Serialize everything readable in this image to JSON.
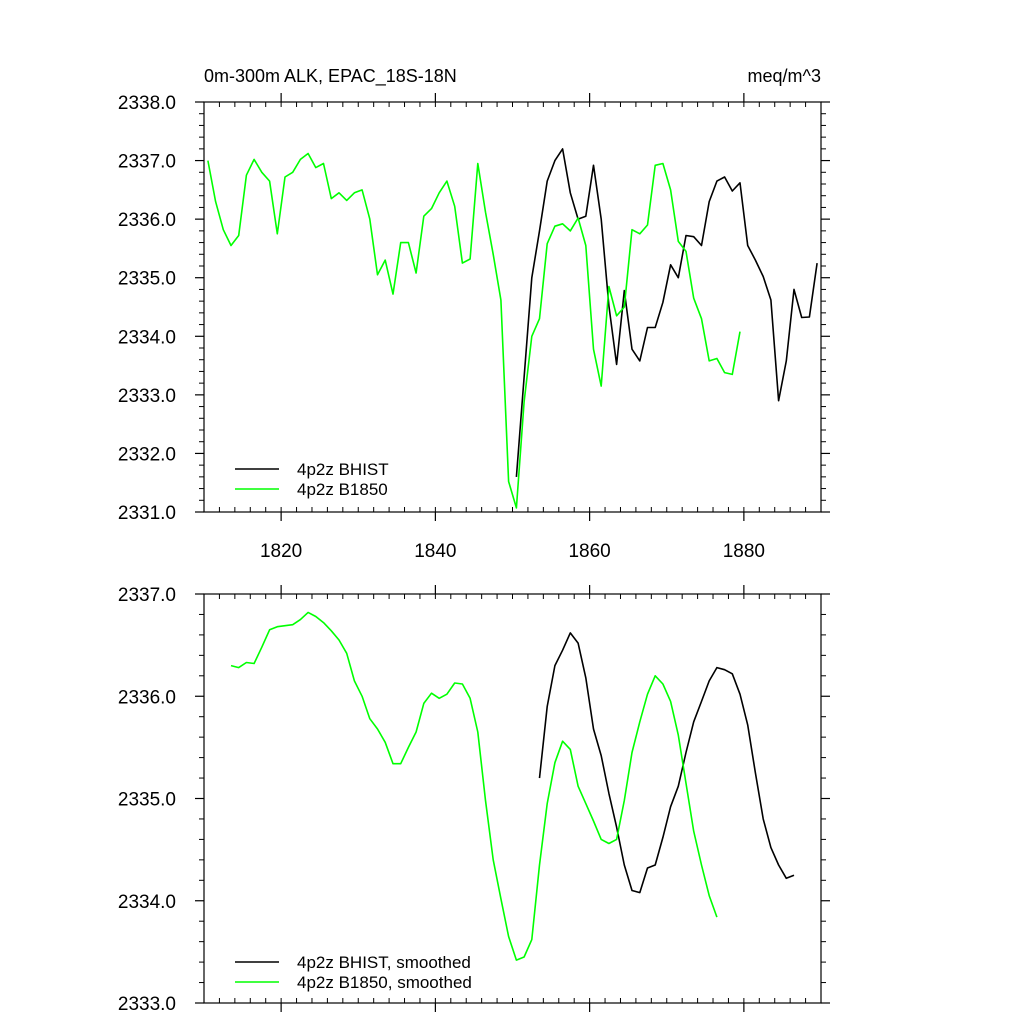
{
  "chart_data": [
    {
      "type": "line",
      "title": "0m-300m ALK, EPAC_18S-18N",
      "units": "meq/m^3",
      "xlim": [
        1810,
        1890
      ],
      "ylim": [
        2331.0,
        2338.0
      ],
      "xticks": [
        1820,
        1840,
        1860,
        1880
      ],
      "xtick_labels": [
        "1820",
        "1840",
        "1860",
        "1880"
      ],
      "yticks": [
        2331.0,
        2332.0,
        2333.0,
        2334.0,
        2335.0,
        2336.0,
        2337.0,
        2338.0
      ],
      "ytick_labels": [
        "2331.0",
        "2332.0",
        "2333.0",
        "2334.0",
        "2335.0",
        "2336.0",
        "2337.0",
        "2338.0"
      ],
      "legend_position": "bottom-left",
      "series": [
        {
          "name": "4p2z BHIST",
          "color": "#000000",
          "x": [
            1850.5,
            1851.5,
            1852.5,
            1853.5,
            1854.5,
            1855.5,
            1856.5,
            1857.5,
            1858.5,
            1859.5,
            1860.5,
            1861.5,
            1862.5,
            1863.5,
            1864.5,
            1865.5,
            1866.5,
            1867.5,
            1868.5,
            1869.5,
            1870.5,
            1871.5,
            1872.5,
            1873.5,
            1874.5,
            1875.5,
            1876.5,
            1877.5,
            1878.5,
            1879.5,
            1880.5,
            1881.5,
            1882.5,
            1883.5,
            1884.5,
            1885.5,
            1886.5,
            1887.5,
            1888.5,
            1889.5
          ],
          "y": [
            2331.6,
            2333.3,
            2335.0,
            2335.8,
            2336.65,
            2337.0,
            2337.2,
            2336.45,
            2336.0,
            2336.05,
            2336.92,
            2336.0,
            2334.52,
            2333.52,
            2334.78,
            2333.78,
            2333.58,
            2334.15,
            2334.15,
            2334.58,
            2335.22,
            2335.0,
            2335.72,
            2335.7,
            2335.55,
            2336.3,
            2336.65,
            2336.72,
            2336.48,
            2336.62,
            2335.55,
            2335.3,
            2335.02,
            2334.62,
            2332.9,
            2333.58,
            2334.8,
            2334.32,
            2334.33,
            2335.25
          ]
        },
        {
          "name": "4p2z B1850",
          "color": "#00ff00",
          "x": [
            1810.5,
            1811.5,
            1812.5,
            1813.5,
            1814.5,
            1815.5,
            1816.5,
            1817.5,
            1818.5,
            1819.5,
            1820.5,
            1821.5,
            1822.5,
            1823.5,
            1824.5,
            1825.5,
            1826.5,
            1827.5,
            1828.5,
            1829.5,
            1830.5,
            1831.5,
            1832.5,
            1833.5,
            1834.5,
            1835.5,
            1836.5,
            1837.5,
            1838.5,
            1839.5,
            1840.5,
            1841.5,
            1842.5,
            1843.5,
            1844.5,
            1845.5,
            1846.5,
            1847.5,
            1848.5,
            1849.5,
            1850.5,
            1851.5,
            1852.5,
            1853.5,
            1854.5,
            1855.5,
            1856.5,
            1857.5,
            1858.5,
            1859.5,
            1860.5,
            1861.5,
            1862.5,
            1863.5,
            1864.5,
            1865.5,
            1866.5,
            1867.5,
            1868.5,
            1869.5,
            1870.5,
            1871.5,
            1872.5,
            1873.5,
            1874.5,
            1875.5,
            1876.5,
            1877.5,
            1878.5,
            1879.5
          ],
          "y": [
            2337.0,
            2336.3,
            2335.82,
            2335.55,
            2335.72,
            2336.75,
            2337.02,
            2336.8,
            2336.65,
            2335.75,
            2336.72,
            2336.8,
            2337.02,
            2337.12,
            2336.88,
            2336.95,
            2336.35,
            2336.45,
            2336.32,
            2336.45,
            2336.5,
            2336.0,
            2335.05,
            2335.3,
            2334.72,
            2335.6,
            2335.6,
            2335.08,
            2336.05,
            2336.18,
            2336.45,
            2336.65,
            2336.22,
            2335.25,
            2335.32,
            2336.95,
            2336.12,
            2335.4,
            2334.62,
            2331.52,
            2331.07,
            2332.88,
            2334.0,
            2334.3,
            2335.58,
            2335.88,
            2335.92,
            2335.8,
            2336.02,
            2335.55,
            2333.78,
            2333.15,
            2334.85,
            2334.35,
            2334.5,
            2335.82,
            2335.75,
            2335.9,
            2336.92,
            2336.95,
            2336.5,
            2335.62,
            2335.45,
            2334.65,
            2334.3,
            2333.58,
            2333.62,
            2333.38,
            2333.35,
            2334.08
          ]
        }
      ]
    },
    {
      "type": "line",
      "xlim": [
        1810,
        1890
      ],
      "ylim": [
        2333.0,
        2337.0
      ],
      "xticks": [
        1820,
        1840,
        1860,
        1880
      ],
      "yticks": [
        2333.0,
        2334.0,
        2335.0,
        2336.0,
        2337.0
      ],
      "ytick_labels": [
        "2333.0",
        "2334.0",
        "2335.0",
        "2336.0",
        "2337.0"
      ],
      "legend_position": "bottom-left",
      "series": [
        {
          "name": "4p2z BHIST, smoothed",
          "color": "#000000",
          "x": [
            1853.5,
            1854.5,
            1855.5,
            1856.5,
            1857.5,
            1858.5,
            1859.5,
            1860.5,
            1861.5,
            1862.5,
            1863.5,
            1864.5,
            1865.5,
            1866.5,
            1867.5,
            1868.5,
            1869.5,
            1870.5,
            1871.5,
            1872.5,
            1873.5,
            1874.5,
            1875.5,
            1876.5,
            1877.5,
            1878.5,
            1879.5,
            1880.5,
            1881.5,
            1882.5,
            1883.5,
            1884.5,
            1885.5,
            1886.5
          ],
          "y": [
            2335.2,
            2335.9,
            2336.3,
            2336.45,
            2336.62,
            2336.52,
            2336.18,
            2335.68,
            2335.42,
            2335.05,
            2334.72,
            2334.35,
            2334.1,
            2334.08,
            2334.32,
            2334.35,
            2334.62,
            2334.92,
            2335.12,
            2335.45,
            2335.75,
            2335.95,
            2336.15,
            2336.28,
            2336.26,
            2336.22,
            2336.02,
            2335.72,
            2335.25,
            2334.8,
            2334.52,
            2334.35,
            2334.22,
            2334.25
          ]
        },
        {
          "name": "4p2z B1850, smoothed",
          "color": "#00ff00",
          "x": [
            1813.5,
            1814.5,
            1815.5,
            1816.5,
            1817.5,
            1818.5,
            1819.5,
            1820.5,
            1821.5,
            1822.5,
            1823.5,
            1824.5,
            1825.5,
            1826.5,
            1827.5,
            1828.5,
            1829.5,
            1830.5,
            1831.5,
            1832.5,
            1833.5,
            1834.5,
            1835.5,
            1836.5,
            1837.5,
            1838.5,
            1839.5,
            1840.5,
            1841.5,
            1842.5,
            1843.5,
            1844.5,
            1845.5,
            1846.5,
            1847.5,
            1848.5,
            1849.5,
            1850.5,
            1851.5,
            1852.5,
            1853.5,
            1854.5,
            1855.5,
            1856.5,
            1857.5,
            1858.5,
            1859.5,
            1860.5,
            1861.5,
            1862.5,
            1863.5,
            1864.5,
            1865.5,
            1866.5,
            1867.5,
            1868.5,
            1869.5,
            1870.5,
            1871.5,
            1872.5,
            1873.5,
            1874.5,
            1875.5,
            1876.5
          ],
          "y": [
            2336.3,
            2336.28,
            2336.33,
            2336.32,
            2336.48,
            2336.65,
            2336.68,
            2336.69,
            2336.7,
            2336.75,
            2336.82,
            2336.78,
            2336.72,
            2336.64,
            2336.55,
            2336.42,
            2336.15,
            2336.0,
            2335.78,
            2335.68,
            2335.55,
            2335.34,
            2335.34,
            2335.5,
            2335.65,
            2335.93,
            2336.03,
            2335.98,
            2336.02,
            2336.13,
            2336.12,
            2335.98,
            2335.65,
            2334.98,
            2334.4,
            2334.02,
            2333.65,
            2333.42,
            2333.45,
            2333.62,
            2334.35,
            2334.95,
            2335.35,
            2335.56,
            2335.48,
            2335.12,
            2334.95,
            2334.78,
            2334.6,
            2334.56,
            2334.6,
            2334.98,
            2335.45,
            2335.75,
            2336.02,
            2336.2,
            2336.12,
            2335.95,
            2335.62,
            2335.15,
            2334.68,
            2334.35,
            2334.05,
            2333.84
          ]
        }
      ]
    }
  ]
}
